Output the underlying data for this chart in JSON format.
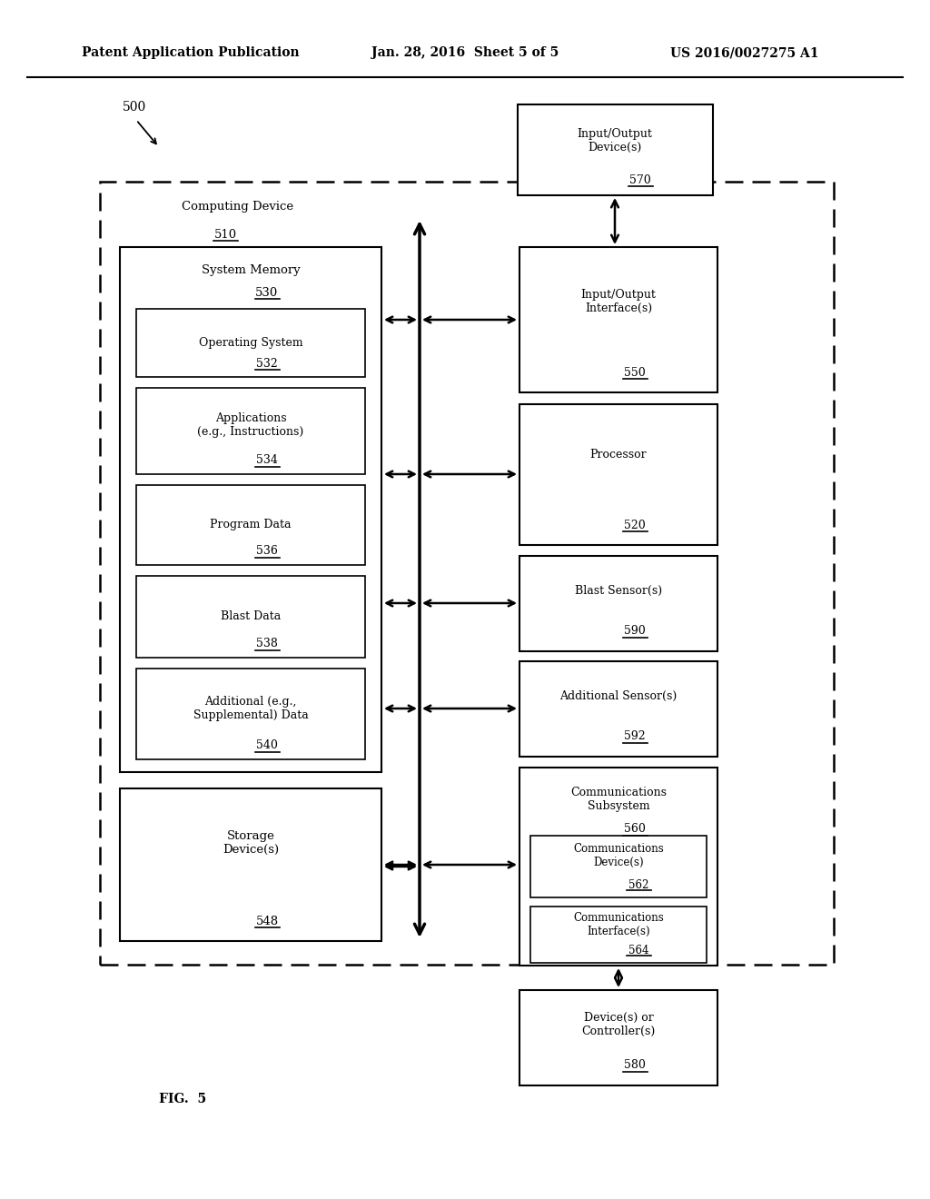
{
  "header_left": "Patent Application Publication",
  "header_mid": "Jan. 28, 2016  Sheet 5 of 5",
  "header_right": "US 2016/0027275 A1",
  "fig_number": "500",
  "fig_label": "FIG.  5",
  "io_device_label": "Input/Output\nDevice(s)",
  "io_device_num": "570",
  "computing_device_label": "Computing Device",
  "computing_device_num": "510",
  "system_memory_label": "System Memory",
  "system_memory_num": "530",
  "mem_inner": [
    {
      "label": "Operating System",
      "num": "532"
    },
    {
      "label": "Applications\n(e.g., Instructions)",
      "num": "534"
    },
    {
      "label": "Program Data",
      "num": "536"
    },
    {
      "label": "Blast Data",
      "num": "538"
    },
    {
      "label": "Additional (e.g.,\nSupplemental) Data",
      "num": "540"
    }
  ],
  "storage_label": "Storage\nDevice(s)",
  "storage_num": "548",
  "io_interface_label": "Input/Output\nInterface(s)",
  "io_interface_num": "550",
  "processor_label": "Processor",
  "processor_num": "520",
  "blast_sensor_label": "Blast Sensor(s)",
  "blast_sensor_num": "590",
  "add_sensor_label": "Additional Sensor(s)",
  "add_sensor_num": "592",
  "comm_sub_label": "Communications\nSubsystem",
  "comm_sub_num": "560",
  "comm_dev_label": "Communications\nDevice(s)",
  "comm_dev_num": "562",
  "comm_iface_label": "Communications\nInterface(s)",
  "comm_iface_num": "564",
  "controller_label": "Device(s) or\nController(s)",
  "controller_num": "580"
}
